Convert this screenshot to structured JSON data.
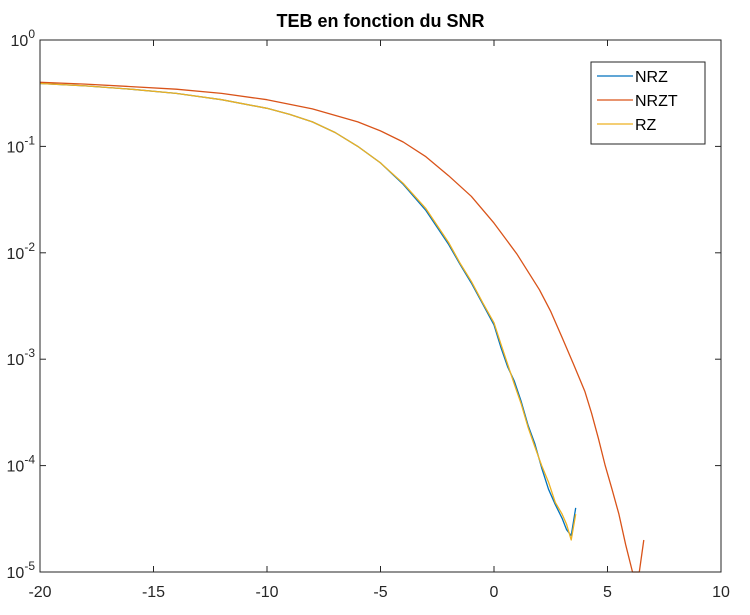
{
  "chart_data": {
    "type": "line",
    "title": "TEB en fonction du SNR",
    "xlabel": "",
    "ylabel": "",
    "xlim": [
      -20,
      10
    ],
    "ylim": [
      1e-05,
      1
    ],
    "yscale": "log",
    "grid": false,
    "legend_position": "top-right",
    "x_ticks": [
      {
        "value": -20,
        "label": "-20"
      },
      {
        "value": -15,
        "label": "-15"
      },
      {
        "value": -10,
        "label": "-10"
      },
      {
        "value": -5,
        "label": "-5"
      },
      {
        "value": 0,
        "label": "0"
      },
      {
        "value": 5,
        "label": "5"
      },
      {
        "value": 10,
        "label": "10"
      }
    ],
    "y_ticks": [
      {
        "value": 1,
        "base": "10",
        "exp": "0"
      },
      {
        "value": 0.1,
        "base": "10",
        "exp": "-1"
      },
      {
        "value": 0.01,
        "base": "10",
        "exp": "-2"
      },
      {
        "value": 0.001,
        "base": "10",
        "exp": "-3"
      },
      {
        "value": 0.0001,
        "base": "10",
        "exp": "-4"
      },
      {
        "value": 1e-05,
        "base": "10",
        "exp": "-5"
      }
    ],
    "series": [
      {
        "name": "NRZ",
        "color": "#0072BD",
        "x": [
          -20,
          -18,
          -16,
          -14,
          -12,
          -10,
          -9,
          -8,
          -7,
          -6,
          -5,
          -4,
          -3,
          -2,
          -1.5,
          -1,
          -0.5,
          0,
          0.3,
          0.6,
          0.9,
          1.2,
          1.5,
          1.8,
          2.1,
          2.4,
          2.7,
          3.0,
          3.2,
          3.4,
          3.6
        ],
        "y": [
          0.39,
          0.37,
          0.345,
          0.315,
          0.275,
          0.228,
          0.2,
          0.17,
          0.135,
          0.1,
          0.07,
          0.044,
          0.025,
          0.012,
          0.0078,
          0.0052,
          0.0033,
          0.0021,
          0.0013,
          0.00085,
          0.00062,
          0.0004,
          0.00024,
          0.00016,
          9.5e-05,
          6e-05,
          4.3e-05,
          3.2e-05,
          2.5e-05,
          2.2e-05,
          4e-05
        ]
      },
      {
        "name": "NRZT",
        "color": "#D95319",
        "x": [
          -20,
          -18,
          -16,
          -14,
          -12,
          -10,
          -8,
          -6,
          -5,
          -4,
          -3,
          -2,
          -1,
          0,
          1,
          2,
          2.5,
          3,
          3.5,
          4,
          4.3,
          4.6,
          4.9,
          5.2,
          5.5,
          5.8,
          6.1,
          6.4,
          6.6
        ],
        "y": [
          0.4,
          0.385,
          0.365,
          0.345,
          0.315,
          0.275,
          0.225,
          0.17,
          0.14,
          0.11,
          0.08,
          0.053,
          0.034,
          0.019,
          0.0098,
          0.0045,
          0.0028,
          0.0016,
          0.0009,
          0.0005,
          0.00031,
          0.00018,
          0.0001,
          6e-05,
          3.5e-05,
          1.8e-05,
          1e-05,
          1e-05,
          2e-05
        ]
      },
      {
        "name": "RZ",
        "color": "#EDB120",
        "x": [
          -20,
          -18,
          -16,
          -14,
          -12,
          -10,
          -9,
          -8,
          -7,
          -6,
          -5,
          -4,
          -3,
          -2,
          -1.5,
          -1,
          -0.5,
          0,
          0.3,
          0.6,
          0.9,
          1.2,
          1.5,
          1.8,
          2.1,
          2.4,
          2.7,
          3.0,
          3.2,
          3.4,
          3.6
        ],
        "y": [
          0.39,
          0.37,
          0.345,
          0.315,
          0.275,
          0.228,
          0.2,
          0.17,
          0.135,
          0.1,
          0.07,
          0.045,
          0.026,
          0.0125,
          0.008,
          0.0054,
          0.0034,
          0.0022,
          0.0014,
          0.0009,
          0.00058,
          0.00038,
          0.00023,
          0.00015,
          0.0001,
          7e-05,
          4.5e-05,
          3.5e-05,
          2.8e-05,
          2e-05,
          3.5e-05
        ]
      }
    ]
  }
}
